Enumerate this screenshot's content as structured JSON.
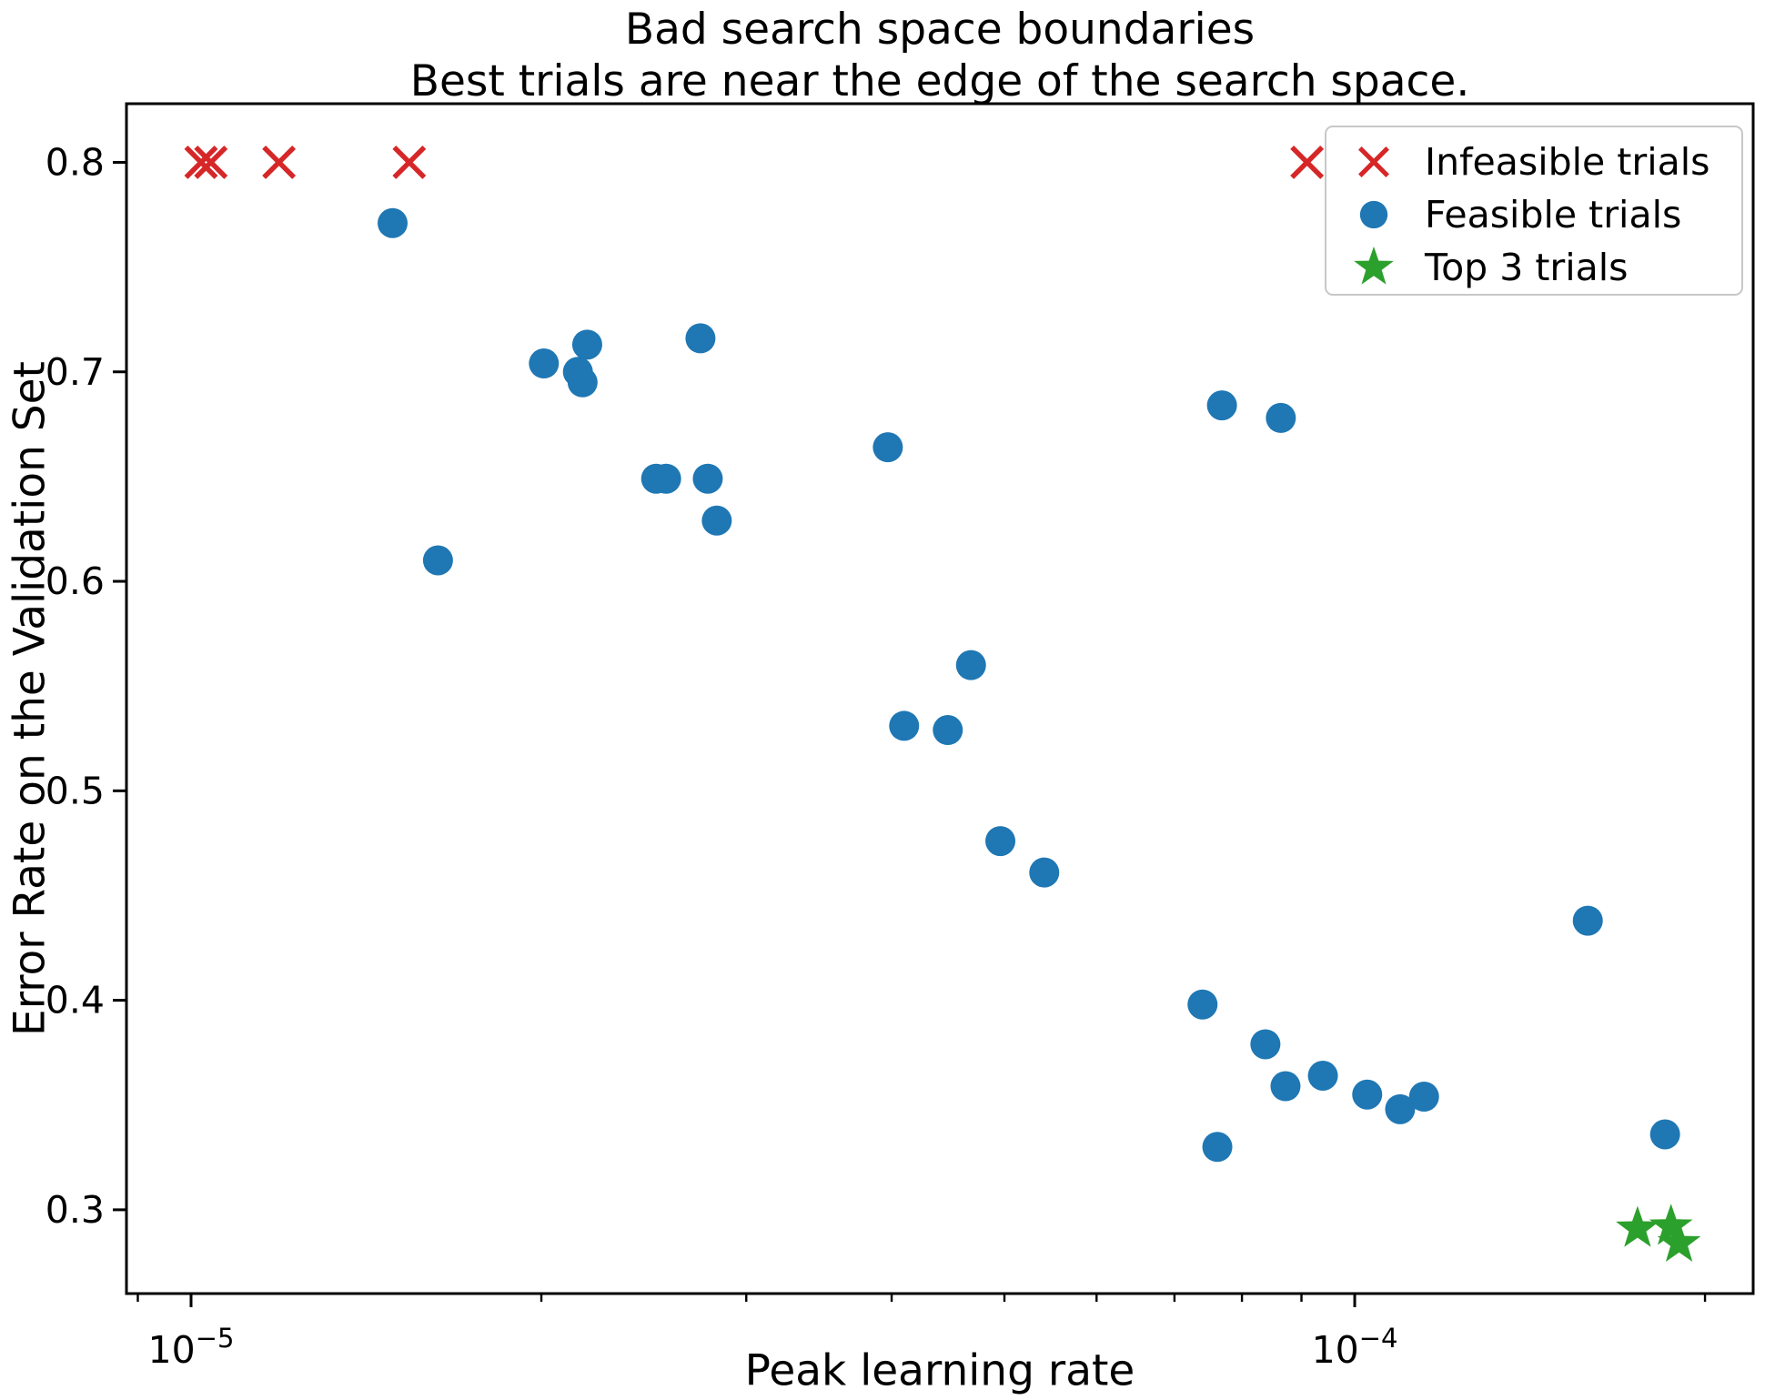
{
  "chart_data": {
    "type": "scatter",
    "title_line1": "Bad search space boundaries",
    "title_line2": "Best trials are near the edge of the search space.",
    "xlabel": "Peak learning rate",
    "ylabel": "Error Rate on the Validation Set",
    "x_scale": "log",
    "y_scale": "linear",
    "xlim": [
      8.8e-06,
      0.00022
    ],
    "ylim": [
      0.26,
      0.828
    ],
    "grid": false,
    "legend_position": "upper right",
    "x_ticks": [
      {
        "value": 1e-05,
        "base": "10",
        "exp": "−5"
      },
      {
        "value": 0.0001,
        "base": "10",
        "exp": "−4"
      }
    ],
    "x_minor_ticks": [
      9e-06,
      2e-05,
      3e-05,
      4e-05,
      5e-05,
      6e-05,
      7e-05,
      8e-05,
      9e-05,
      0.0002
    ],
    "y_ticks": [
      {
        "value": 0.8,
        "label": "0.8"
      },
      {
        "value": 0.7,
        "label": "0.7"
      },
      {
        "value": 0.6,
        "label": "0.6"
      },
      {
        "value": 0.5,
        "label": "0.5"
      },
      {
        "value": 0.4,
        "label": "0.4"
      },
      {
        "value": 0.3,
        "label": "0.3"
      }
    ],
    "series": [
      {
        "name": "Infeasible trials",
        "marker": "x",
        "color": "#d62728",
        "points": [
          [
            1.02e-05,
            0.8
          ],
          [
            1.04e-05,
            0.8
          ],
          [
            1.19e-05,
            0.8
          ],
          [
            1.54e-05,
            0.8
          ],
          [
            9.1e-05,
            0.8
          ]
        ]
      },
      {
        "name": "Feasible trials",
        "marker": "circle",
        "color": "#1f77b4",
        "points": [
          [
            1.49e-05,
            0.771
          ],
          [
            1.63e-05,
            0.61
          ],
          [
            2.01e-05,
            0.704
          ],
          [
            2.15e-05,
            0.7
          ],
          [
            2.17e-05,
            0.695
          ],
          [
            2.19e-05,
            0.713
          ],
          [
            2.74e-05,
            0.716
          ],
          [
            2.51e-05,
            0.649
          ],
          [
            2.56e-05,
            0.649
          ],
          [
            2.78e-05,
            0.649
          ],
          [
            2.83e-05,
            0.629
          ],
          [
            3.97e-05,
            0.664
          ],
          [
            4.1e-05,
            0.531
          ],
          [
            4.47e-05,
            0.529
          ],
          [
            4.68e-05,
            0.56
          ],
          [
            4.96e-05,
            0.476
          ],
          [
            5.41e-05,
            0.461
          ],
          [
            7.4e-05,
            0.398
          ],
          [
            7.62e-05,
            0.33
          ],
          [
            7.69e-05,
            0.684
          ],
          [
            8.38e-05,
            0.379
          ],
          [
            8.64e-05,
            0.678
          ],
          [
            8.72e-05,
            0.359
          ],
          [
            9.39e-05,
            0.364
          ],
          [
            0.0001025,
            0.355
          ],
          [
            0.0001094,
            0.348
          ],
          [
            0.0001147,
            0.354
          ],
          [
            0.0001586,
            0.438
          ],
          [
            0.0001848,
            0.336
          ]
        ]
      },
      {
        "name": "Top 3 trials",
        "marker": "star",
        "color": "#2ca02c",
        "points": [
          [
            0.000175,
            0.291
          ],
          [
            0.000187,
            0.292
          ],
          [
            0.00019,
            0.284
          ]
        ]
      }
    ]
  }
}
